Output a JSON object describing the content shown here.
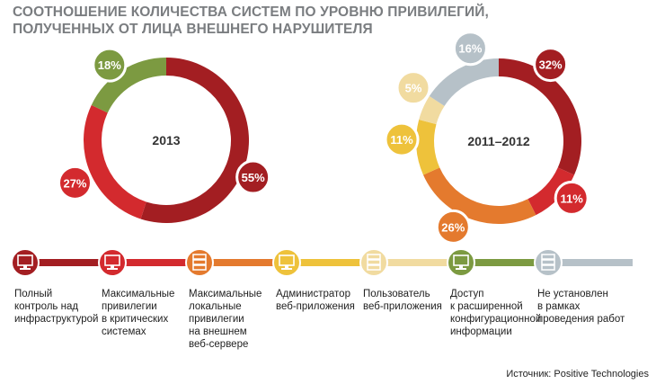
{
  "chart_data": [
    {
      "type": "pie",
      "variant": "donut",
      "center_label": "2013",
      "slices": [
        {
          "category": "Полный контроль над инфраструктурой",
          "value": 55,
          "label": "55%",
          "color": "#a31e22"
        },
        {
          "category": "Максимальные привилегии в критических системах",
          "value": 27,
          "label": "27%",
          "color": "#d32a2e"
        },
        {
          "category": "Доступ к расширенной конфигурационной информации",
          "value": 18,
          "label": "18%",
          "color": "#7c9a41"
        }
      ]
    },
    {
      "type": "pie",
      "variant": "donut",
      "center_label": "2011–2012",
      "slices": [
        {
          "category": "Полный контроль над инфраструктурой",
          "value": 32,
          "label": "32%",
          "color": "#a31e22"
        },
        {
          "category": "Максимальные привилегии в критических системах",
          "value": 11,
          "label": "11%",
          "color": "#d32a2e"
        },
        {
          "category": "Максимальные локальные привилегии на внешнем веб-сервере",
          "value": 26,
          "label": "26%",
          "color": "#e47a2e"
        },
        {
          "category": "Администратор веб-приложения",
          "value": 11,
          "label": "11%",
          "color": "#eec23b"
        },
        {
          "category": "Пользователь веб-приложения",
          "value": 5,
          "label": "5%",
          "color": "#f1dba0"
        },
        {
          "category": "Не установлен в рамках проведения работ",
          "value": 16,
          "label": "16%",
          "color": "#b6c1c8"
        }
      ]
    }
  ],
  "title": "СООТНОШЕНИЕ КОЛИЧЕСТВА СИСТЕМ ПО УРОВНЮ ПРИВИЛЕГИЙ, ПОЛУЧЕННЫХ ОТ ЛИЦА ВНЕШНЕГО НАРУШИТЕЛЯ",
  "legend": [
    {
      "label": "Полный\nконтроль над\nинфраструктурой",
      "color": "#a31e22",
      "icon": "computer-icon"
    },
    {
      "label": "Максимальные\nпривилегии\nв критических\nсистемах",
      "color": "#d32a2e",
      "icon": "computer-icon"
    },
    {
      "label": "Максимальные\nлокальные\nпривилегии\nна внешнем\nвеб-сервере",
      "color": "#e47a2e",
      "icon": "server-icon"
    },
    {
      "label": "Администратор\nвеб-приложения",
      "color": "#eec23b",
      "icon": "computer-icon"
    },
    {
      "label": "Пользователь\nвеб-приложения",
      "color": "#f1dba0",
      "icon": "server-icon"
    },
    {
      "label": "Доступ\nк расширенной\nконфигурационной\nинформации",
      "color": "#7c9a41",
      "icon": "computer-icon"
    },
    {
      "label": "Не установлен\nв рамках\nпроведения работ",
      "color": "#b6c1c8",
      "icon": "server-icon"
    }
  ],
  "source": "Источник: Positive Technologies"
}
